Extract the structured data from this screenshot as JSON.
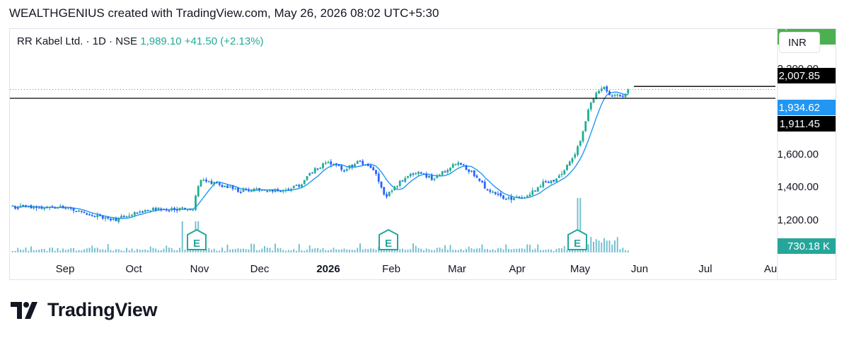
{
  "header": {
    "caption": "WEALTHGENIUS created with TradingView.com, May 26, 2026 08:02 UTC+5:30"
  },
  "legend": {
    "symbol": "RR Kabel Ltd. · 1D · NSE",
    "price": "1,989.10",
    "change": "+41.50 (+2.13%)"
  },
  "currency": "INR",
  "footer": {
    "brand": "TradingView"
  },
  "colors": {
    "up": "#22ab94",
    "down": "#2962ff",
    "ma": "#2196f3",
    "volume": "#5fb6c8",
    "label_dark": "#000000",
    "label_green": "#4caf50",
    "label_blue": "#2196f3",
    "volume_label": "#26a69a"
  },
  "chart_data": {
    "type": "candlestick",
    "x_axis": {
      "ticks": [
        "Sep",
        "Oct",
        "Nov",
        "Dec",
        "2026",
        "Feb",
        "Mar",
        "Apr",
        "May",
        "Jun",
        "Jul",
        "Au"
      ]
    },
    "y_axis": {
      "ticks": [
        "1,200.00",
        "1,400.00",
        "1,600.00",
        "2,200.00"
      ],
      "range": [
        1160,
        2200
      ]
    },
    "price_labels": [
      {
        "value": 2007.85,
        "text": "2,007.85",
        "style": "dark"
      },
      {
        "value": 1989.1,
        "text": "1,989.10",
        "style": "green"
      },
      {
        "value": 1934.62,
        "text": "1,934.62",
        "style": "blue"
      },
      {
        "value": 1911.45,
        "text": "1,911.45",
        "style": "dark"
      }
    ],
    "horizontal_lines": [
      {
        "value": 2007.85,
        "style": "solid"
      },
      {
        "value": 1934.62,
        "style": "solid"
      },
      {
        "value": 1989.1,
        "style": "dotted"
      }
    ],
    "volume_label": "730.18 K",
    "earnings_markers": [
      {
        "month": "Nov",
        "text": "E"
      },
      {
        "month": "Feb",
        "text": "E"
      },
      {
        "month": "May",
        "text": "E"
      }
    ],
    "closes": [
      {
        "month": "Sep",
        "day": 0,
        "close": 1265
      },
      {
        "month": "Sep",
        "day": 5,
        "close": 1240
      },
      {
        "month": "Sep",
        "day": 12,
        "close": 1220
      },
      {
        "month": "Sep",
        "day": 22,
        "close": 1185
      },
      {
        "month": "Oct",
        "day": 0,
        "close": 1230
      },
      {
        "month": "Oct",
        "day": 10,
        "close": 1255
      },
      {
        "month": "Oct",
        "day": 20,
        "close": 1250
      },
      {
        "month": "Oct",
        "day": 28,
        "close": 1262
      },
      {
        "month": "Nov",
        "day": 0,
        "close": 1440
      },
      {
        "month": "Nov",
        "day": 10,
        "close": 1405
      },
      {
        "month": "Nov",
        "day": 20,
        "close": 1365
      },
      {
        "month": "Dec",
        "day": 0,
        "close": 1380
      },
      {
        "month": "Dec",
        "day": 10,
        "close": 1365
      },
      {
        "month": "Dec",
        "day": 18,
        "close": 1400
      },
      {
        "month": "Dec",
        "day": 25,
        "close": 1500
      },
      {
        "month": "2026",
        "day": 0,
        "close": 1545
      },
      {
        "month": "2026",
        "day": 8,
        "close": 1495
      },
      {
        "month": "2026",
        "day": 15,
        "close": 1550
      },
      {
        "month": "2026",
        "day": 22,
        "close": 1505
      },
      {
        "month": "2026",
        "day": 28,
        "close": 1330
      },
      {
        "month": "Feb",
        "day": 5,
        "close": 1430
      },
      {
        "month": "Feb",
        "day": 12,
        "close": 1485
      },
      {
        "month": "Feb",
        "day": 20,
        "close": 1435
      },
      {
        "month": "Mar",
        "day": 0,
        "close": 1545
      },
      {
        "month": "Mar",
        "day": 8,
        "close": 1475
      },
      {
        "month": "Mar",
        "day": 15,
        "close": 1380
      },
      {
        "month": "Mar",
        "day": 25,
        "close": 1315
      },
      {
        "month": "Apr",
        "day": 5,
        "close": 1330
      },
      {
        "month": "Apr",
        "day": 12,
        "close": 1410
      },
      {
        "month": "Apr",
        "day": 20,
        "close": 1440
      },
      {
        "month": "Apr",
        "day": 27,
        "close": 1560
      },
      {
        "month": "May",
        "day": 0,
        "close": 1660
      },
      {
        "month": "May",
        "day": 4,
        "close": 1860
      },
      {
        "month": "May",
        "day": 8,
        "close": 1955
      },
      {
        "month": "May",
        "day": 12,
        "close": 2007
      },
      {
        "month": "May",
        "day": 16,
        "close": 1950
      },
      {
        "month": "May",
        "day": 19,
        "close": 1965
      },
      {
        "month": "May",
        "day": 22,
        "close": 1948
      },
      {
        "month": "May",
        "day": 25,
        "close": 1989
      }
    ]
  }
}
